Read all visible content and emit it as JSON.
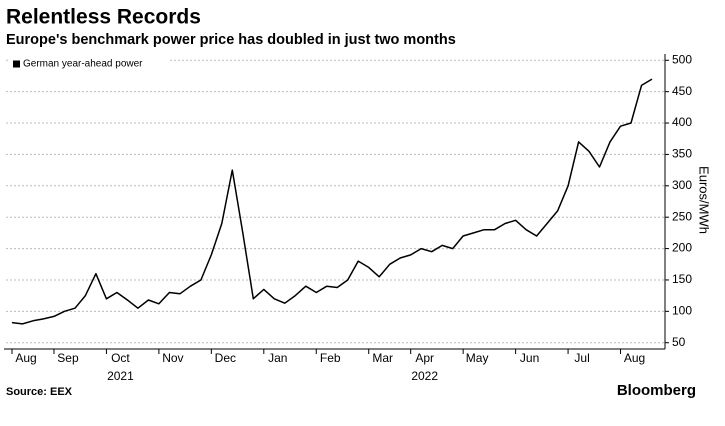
{
  "chart_data": {
    "type": "line",
    "title": "Relentless Records",
    "subtitle": "Europe's benchmark power price has doubled in just two months",
    "y_label": "Euros/MWh",
    "source": "Source: EEX",
    "brand": "Bloomberg",
    "years": [
      "2021",
      "2022"
    ],
    "categories": [
      "Aug",
      null,
      null,
      null,
      "Sep",
      null,
      null,
      null,
      null,
      "Oct",
      null,
      null,
      null,
      null,
      "Nov",
      null,
      null,
      null,
      null,
      "Dec",
      null,
      null,
      null,
      null,
      "Jan",
      null,
      null,
      null,
      null,
      "Feb",
      null,
      null,
      null,
      null,
      "Mar",
      null,
      null,
      null,
      "Apr",
      null,
      null,
      null,
      null,
      "May",
      null,
      null,
      null,
      null,
      "Jun",
      null,
      null,
      null,
      null,
      "Jul",
      null,
      null,
      null,
      null,
      "Aug",
      null,
      null,
      null
    ],
    "series": [
      {
        "name": "German year-ahead power",
        "color": "#000000",
        "values": [
          82,
          80,
          85,
          88,
          92,
          100,
          105,
          125,
          160,
          120,
          130,
          118,
          105,
          118,
          112,
          130,
          128,
          140,
          150,
          190,
          240,
          325,
          225,
          120,
          135,
          120,
          113,
          125,
          140,
          130,
          140,
          138,
          150,
          180,
          170,
          155,
          175,
          185,
          190,
          200,
          195,
          205,
          200,
          220,
          225,
          230,
          230,
          240,
          245,
          230,
          220,
          240,
          260,
          300,
          370,
          355,
          330,
          370,
          395,
          400,
          460,
          470
        ]
      }
    ],
    "ylim": [
      40,
      510
    ],
    "yticks": [
      50,
      100,
      150,
      200,
      250,
      300,
      350,
      400,
      450,
      500
    ],
    "grid": true,
    "legend": "top-left"
  }
}
